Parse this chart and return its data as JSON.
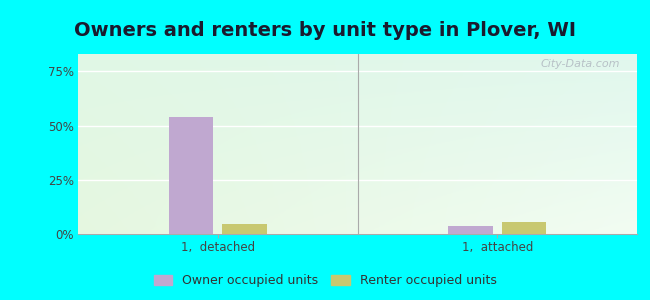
{
  "title": "Owners and renters by unit type in Plover, WI",
  "categories": [
    "1,  detached",
    "1,  attached"
  ],
  "owner_values": [
    54.0,
    3.5
  ],
  "renter_values": [
    4.5,
    5.5
  ],
  "owner_color": "#c0a8d0",
  "renter_color": "#c8c870",
  "yticks": [
    0,
    25,
    50,
    75
  ],
  "ytick_labels": [
    "0%",
    "25%",
    "50%",
    "75%"
  ],
  "ylim": [
    0,
    83
  ],
  "bar_width": 0.28,
  "outer_bg": "#00ffff",
  "plot_bg_topleft": [
    0.88,
    0.97,
    0.9
  ],
  "plot_bg_topright": [
    0.88,
    0.97,
    0.93
  ],
  "plot_bg_bottomleft": [
    0.9,
    0.97,
    0.88
  ],
  "plot_bg_bottomright": [
    0.95,
    0.99,
    0.95
  ],
  "watermark": "City-Data.com",
  "legend_owner": "Owner occupied units",
  "legend_renter": "Renter occupied units",
  "title_fontsize": 14,
  "axis_fontsize": 8.5,
  "legend_fontsize": 9,
  "group_positions": [
    0.25,
    0.75
  ],
  "xlim": [
    0.0,
    1.0
  ]
}
